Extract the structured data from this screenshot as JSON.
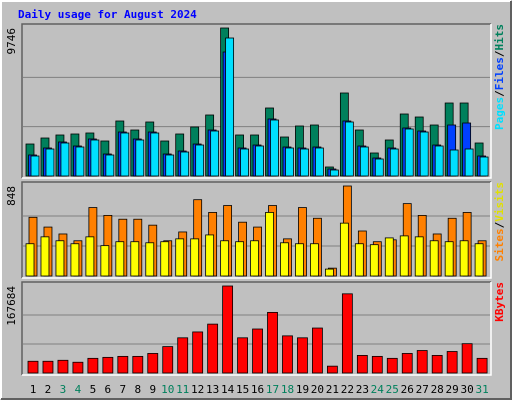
{
  "chart_data": [
    {
      "type": "bar",
      "title": "Daily usage for August 2024",
      "legend_separator": "/",
      "ylim": [
        0,
        9746
      ],
      "yticks": [
        9746
      ],
      "series": [
        {
          "name": "Hits",
          "color": "#00805c",
          "values": [
            2107,
            2502,
            2700,
            2766,
            2832,
            2305,
            3622,
            3029,
            3556,
            2305,
            2766,
            3227,
            4017,
            9746,
            2700,
            2700,
            4478,
            2568,
            3293,
            3358,
            593,
            5466,
            3029,
            1515,
            2371,
            4083,
            3885,
            3358,
            4807,
            4807,
            2173
          ]
        },
        {
          "name": "Files",
          "color": "#0040ff",
          "values": [
            1383,
            1844,
            2239,
            1976,
            2437,
            1449,
            2897,
            2437,
            2897,
            1449,
            1646,
            2107,
            3029,
            8165,
            1844,
            2041,
            3754,
            1910,
            1844,
            1910,
            461,
            3622,
            1976,
            1185,
            1844,
            3161,
            2963,
            2041,
            3358,
            3490,
            1317
          ]
        },
        {
          "name": "Pages",
          "color": "#00e0ff",
          "values": [
            1317,
            1778,
            2173,
            1910,
            2371,
            1383,
            2832,
            2371,
            2832,
            1383,
            1580,
            2041,
            2963,
            9087,
            1778,
            1976,
            3688,
            1844,
            1778,
            1844,
            395,
            3556,
            1910,
            1119,
            1778,
            3095,
            2897,
            1976,
            1712,
            1778,
            1251
          ]
        }
      ]
    },
    {
      "type": "bar",
      "legend_separator": "/",
      "ylim": [
        0,
        848
      ],
      "yticks": [
        848
      ],
      "series": [
        {
          "name": "Visits",
          "color": "#ffff00",
          "values": [
            304,
            369,
            332,
            304,
            369,
            286,
            323,
            323,
            313,
            323,
            350,
            350,
            387,
            332,
            323,
            332,
            599,
            313,
            304,
            304,
            65,
            498,
            304,
            295,
            359,
            378,
            369,
            332,
            323,
            332,
            304
          ]
        },
        {
          "name": "Sites",
          "color": "#ff8000",
          "values": [
            553,
            461,
            396,
            332,
            645,
            571,
            535,
            535,
            479,
            332,
            415,
            719,
            599,
            664,
            507,
            461,
            664,
            350,
            645,
            544,
            74,
            848,
            424,
            323,
            341,
            682,
            571,
            396,
            544,
            599,
            332
          ]
        }
      ]
    },
    {
      "type": "bar",
      "ylim": [
        0,
        167684
      ],
      "yticks": [
        167684
      ],
      "categories": [
        "1",
        "2",
        "3",
        "4",
        "5",
        "6",
        "7",
        "8",
        "9",
        "10",
        "11",
        "12",
        "13",
        "14",
        "15",
        "16",
        "17",
        "18",
        "19",
        "20",
        "21",
        "22",
        "23",
        "24",
        "25",
        "26",
        "27",
        "28",
        "29",
        "30",
        "31"
      ],
      "category_colors": [
        "#000000",
        "#000000",
        "#00805c",
        "#00805c",
        "#000000",
        "#000000",
        "#000000",
        "#000000",
        "#000000",
        "#00805c",
        "#00805c",
        "#000000",
        "#000000",
        "#000000",
        "#000000",
        "#000000",
        "#00805c",
        "#00805c",
        "#000000",
        "#000000",
        "#000000",
        "#000000",
        "#000000",
        "#00805c",
        "#00805c",
        "#000000",
        "#000000",
        "#000000",
        "#000000",
        "#000000",
        "#00805c"
      ],
      "series": [
        {
          "name": "KBytes",
          "color": "#ff0000",
          "values": [
            22609,
            22609,
            24493,
            20725,
            28261,
            30145,
            32029,
            32029,
            37682,
            50870,
            67827,
            79131,
            94204,
            167684,
            67827,
            84784,
            116813,
            71595,
            67827,
            86668,
            13189,
            152611,
            33913,
            32029,
            28261,
            37682,
            43334,
            33913,
            41450,
            56522,
            28261
          ]
        }
      ]
    }
  ]
}
